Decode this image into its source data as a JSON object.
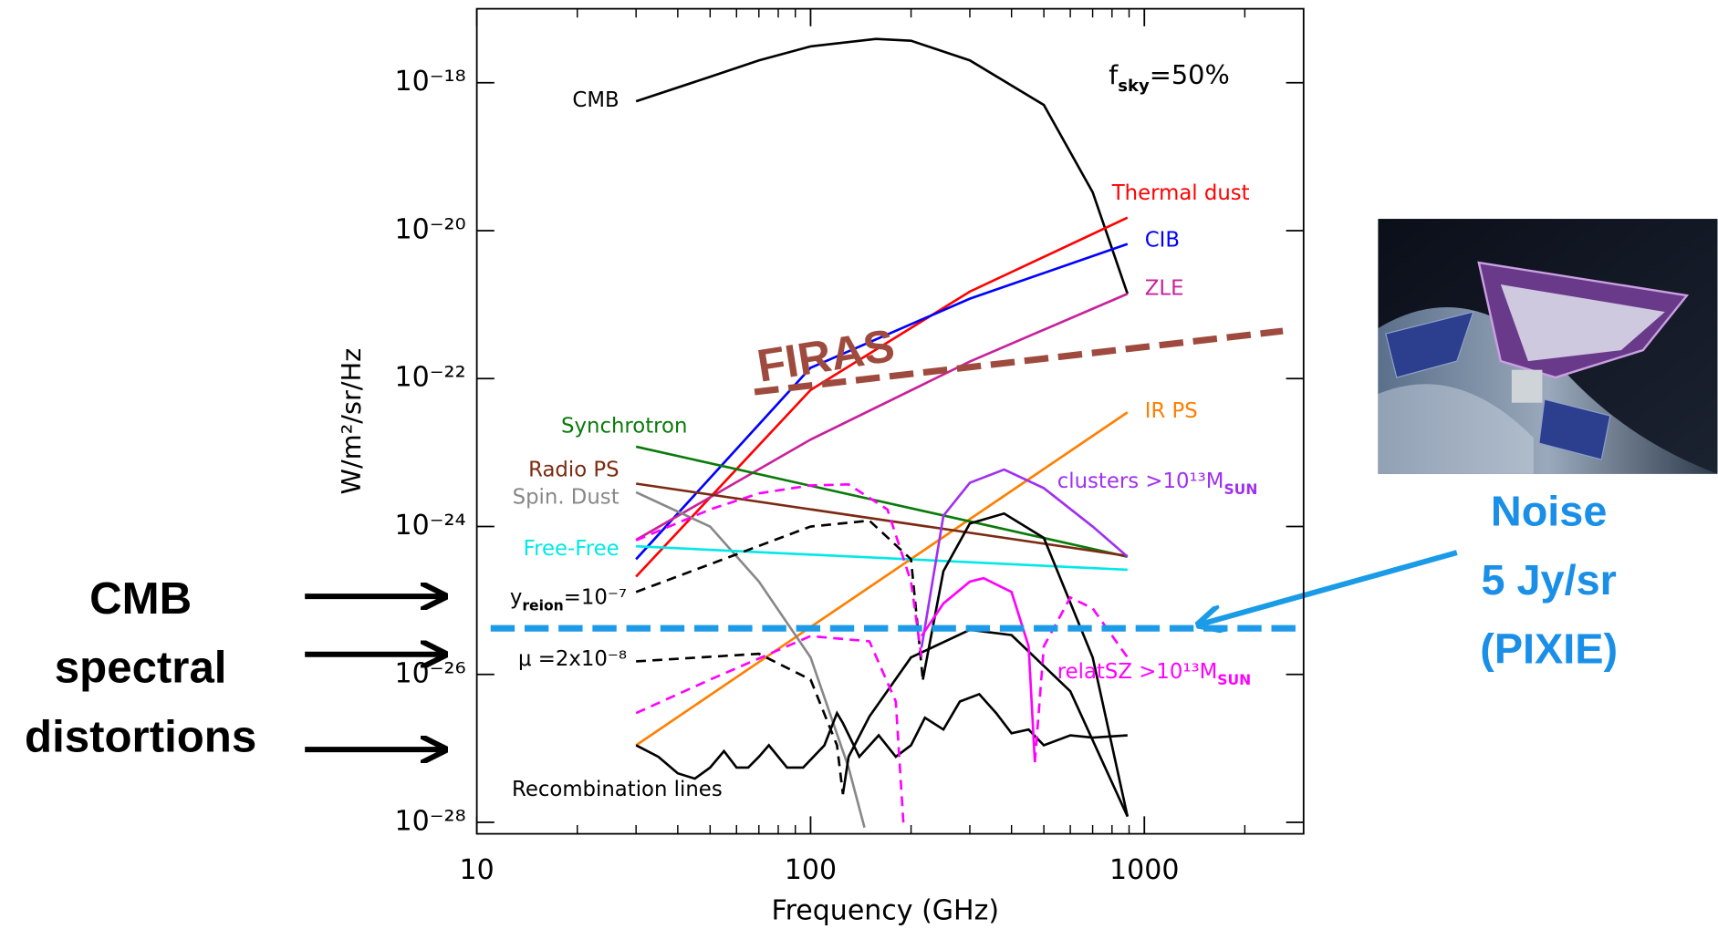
{
  "chart_data": {
    "type": "line",
    "x_label": "Frequency (GHz)",
    "y_label": "W/m²/sr/Hz",
    "xscale": "log",
    "yscale": "log",
    "xlim": [
      10,
      3000
    ],
    "ylim": [
      7e-29,
      1e-17
    ],
    "xticks": [
      10,
      100,
      1000
    ],
    "xminorticks": [
      20,
      30,
      40,
      50,
      60,
      70,
      80,
      90,
      200,
      300,
      400,
      500,
      600,
      700,
      800,
      900,
      2000
    ],
    "yticks": [
      {
        "value": 1e-18,
        "label": "10⁻¹⁸"
      },
      {
        "value": 1e-20,
        "label": "10⁻²⁰"
      },
      {
        "value": 1e-22,
        "label": "10⁻²²"
      },
      {
        "value": 1e-24,
        "label": "10⁻²⁴"
      },
      {
        "value": 1e-26,
        "label": "10⁻²⁶"
      },
      {
        "value": 1e-28,
        "label": "10⁻²⁸"
      }
    ],
    "annotations": {
      "fsky": [
        {
          "text": "f"
        },
        {
          "text": "sky",
          "sub": true
        },
        {
          "text": "=50%"
        }
      ],
      "distortions": [
        "CMB",
        "spectral",
        "distortions"
      ],
      "noise": [
        "Noise",
        "5 Jy/sr",
        "(PIXIE)"
      ]
    },
    "series": [
      {
        "name": "CMB",
        "color": "#000000",
        "x": [
          30,
          50,
          70,
          100,
          157,
          200,
          300,
          500,
          700,
          890
        ],
        "values": [
          5.6e-19,
          1.2e-18,
          2e-18,
          3.1e-18,
          3.9e-18,
          3.7e-18,
          2e-18,
          5e-19,
          3.3e-20,
          1.4e-21
        ]
      },
      {
        "name": "Thermal dust",
        "color": "#ff0000",
        "x": [
          30,
          100,
          300,
          890
        ],
        "values": [
          2.1e-25,
          7e-23,
          1.5e-21,
          1.5e-20
        ]
      },
      {
        "name": "CIB",
        "color": "#0000ff",
        "x": [
          30,
          100,
          300,
          890
        ],
        "values": [
          3.6e-25,
          1.4e-22,
          1.2e-21,
          6.6e-21
        ]
      },
      {
        "name": "ZLE",
        "color": "#c8229a",
        "x": [
          30,
          100,
          300,
          890
        ],
        "values": [
          6.6e-25,
          1.5e-23,
          1.7e-22,
          1.4e-21
        ]
      },
      {
        "name": "FIRAS",
        "color": "#9e4a3e",
        "dash": true,
        "linewidth": 6,
        "x": [
          68,
          2600
        ],
        "values": [
          6.6e-23,
          4.4e-22
        ]
      },
      {
        "name": "IR PS",
        "color": "#ff7f00",
        "x": [
          30,
          890
        ],
        "values": [
          1.1e-27,
          3.5e-23
        ]
      },
      {
        "name": "Synchrotron",
        "color": "#0a7a0a",
        "x": [
          30,
          890
        ],
        "values": [
          1.2e-23,
          3.9e-25
        ]
      },
      {
        "name": "Radio PS",
        "color": "#7b2b12",
        "x": [
          30,
          890
        ],
        "values": [
          3.8e-24,
          4e-25
        ]
      },
      {
        "name": "Spin. Dust",
        "color": "#888888",
        "x": [
          30,
          50,
          70,
          100,
          130,
          145
        ],
        "values": [
          2.9e-24,
          1e-24,
          1.8e-25,
          1.7e-26,
          5.5e-28,
          8.5e-29
        ]
      },
      {
        "name": "Free-Free",
        "color": "#00e8e8",
        "x": [
          30,
          890
        ],
        "values": [
          5.4e-25,
          2.6e-25
        ]
      },
      {
        "name": [
          {
            "text": "y"
          },
          {
            "text": "reion",
            "sub": true
          },
          {
            "text": "=10⁻⁷"
          }
        ],
        "color": "#000000",
        "dash": true,
        "x": [
          30,
          100,
          150,
          200,
          217
        ],
        "values": [
          1.3e-25,
          1e-24,
          1.2e-24,
          3.6e-25,
          8.5e-27
        ]
      },
      {
        "color": "#000000",
        "x": [
          217,
          250,
          300,
          380,
          500,
          700,
          890
        ],
        "values": [
          8.5e-27,
          2.5e-25,
          1.1e-24,
          1.5e-24,
          7e-25,
          1.7e-26,
          1.2e-28
        ]
      },
      {
        "name": "μ  =2x10⁻⁸",
        "color": "#000000",
        "dash": true,
        "x": [
          30,
          70,
          100,
          120,
          125
        ],
        "values": [
          1.5e-26,
          1.9e-26,
          8.5e-27,
          1.1e-27,
          2.4e-28
        ]
      },
      {
        "color": "#000000",
        "x": [
          125,
          130,
          150,
          200,
          300,
          400,
          600,
          890
        ],
        "values": [
          2.4e-28,
          7.7e-28,
          2.7e-27,
          1.7e-26,
          4e-26,
          3.4e-26,
          5.9e-27,
          1.2e-28
        ]
      },
      {
        "name": "Recombination lines",
        "color": "#000000",
        "x": [
          30,
          35,
          40,
          45,
          50,
          55,
          60,
          65,
          70,
          75,
          85,
          95,
          110,
          120,
          125,
          140,
          160,
          180,
          200,
          220,
          250,
          280,
          320,
          360,
          400,
          450,
          500,
          600,
          700,
          890
        ],
        "values": [
          1.1e-27,
          7.7e-28,
          4.6e-28,
          3.9e-28,
          5.5e-28,
          9.2e-28,
          5.5e-28,
          5.5e-28,
          7.7e-28,
          1.1e-27,
          5.5e-28,
          5.5e-28,
          1.1e-27,
          3e-27,
          2.2e-27,
          7.7e-28,
          1.5e-27,
          7.7e-28,
          1.1e-27,
          2.6e-27,
          1.8e-27,
          4.3e-27,
          5.4e-27,
          3e-27,
          1.6e-27,
          1.8e-27,
          1.1e-27,
          1.5e-27,
          1.4e-27,
          1.5e-27
        ]
      },
      {
        "name": [
          {
            "text": "clusters >10¹³M"
          },
          {
            "text": "SUN",
            "sub": true
          }
        ],
        "color": "#a030f0",
        "x": [
          215,
          250,
          300,
          380,
          500,
          700,
          890
        ],
        "values": [
          2.3e-26,
          1.4e-24,
          3.9e-24,
          5.9e-24,
          3.3e-24,
          1e-24,
          3.9e-25
        ]
      },
      {
        "color": "#ff00ff",
        "dash": true,
        "x": [
          30,
          50,
          100,
          150,
          180,
          190
        ],
        "values": [
          3e-27,
          8.5e-27,
          3.3e-26,
          2.8e-26,
          4.3e-27,
          8.5e-29
        ]
      },
      {
        "color": "#ff00ff",
        "x": [
          215,
          250,
          300,
          330,
          400,
          450,
          470
        ],
        "values": [
          3.3e-26,
          9.1e-26,
          1.8e-25,
          2e-25,
          1.3e-25,
          2.4e-26,
          6.5e-28
        ]
      },
      {
        "name": [
          {
            "text": "relatSZ >10¹³M"
          },
          {
            "text": "SUN",
            "sub": true
          }
        ],
        "color": "#ff00ff",
        "dash": true,
        "x": [
          470,
          500,
          600,
          700,
          890
        ],
        "values": [
          6.5e-28,
          2.4e-26,
          1.1e-25,
          7.8e-26,
          1.7e-26
        ]
      },
      {
        "color": "#ff00ff",
        "dash": true,
        "x": [
          30,
          50,
          70,
          100,
          130,
          170,
          200,
          215
        ],
        "values": [
          6.5e-25,
          1.7e-24,
          2.8e-24,
          3.6e-24,
          3.7e-24,
          1.7e-24,
          1.8e-25,
          1.7e-26
        ]
      },
      {
        "color": "#1e9be8",
        "dash": true,
        "linewidth": 6,
        "x": [
          11,
          2880
        ],
        "values": [
          4.2e-26,
          4.2e-26
        ]
      }
    ]
  }
}
